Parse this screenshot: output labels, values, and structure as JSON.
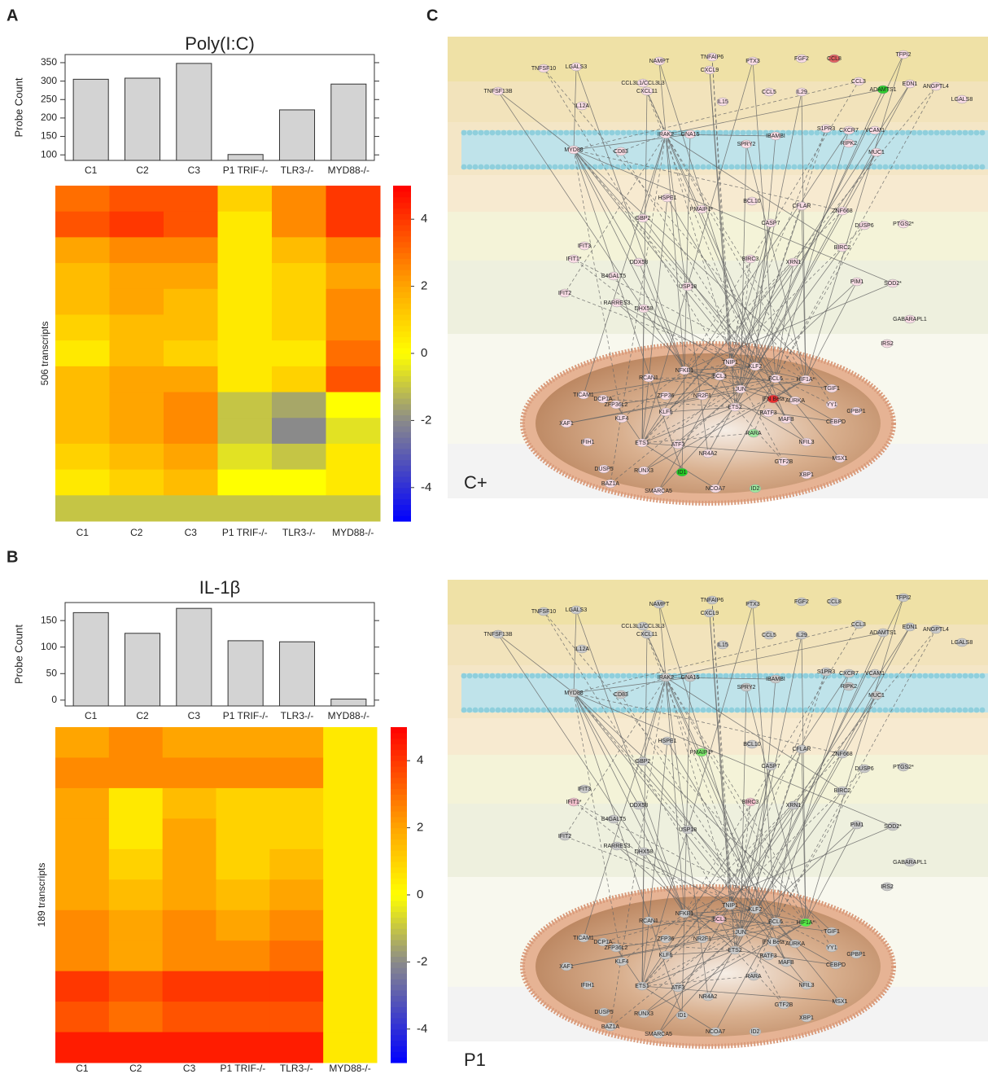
{
  "panel_labels": [
    "A",
    "B",
    "C"
  ],
  "chart_data": [
    {
      "type": "bar",
      "title": "Poly(I:C)",
      "ylabel": "Probe Count",
      "categories": [
        "C1",
        "C2",
        "C3",
        "P1 TRIF-/-",
        "TLR3-/-",
        "MYD88-/-"
      ],
      "values": [
        305,
        308,
        348,
        101,
        222,
        292
      ],
      "color": "#d3d3d3",
      "ylim": [
        85,
        372
      ],
      "yticks": [
        100,
        150,
        200,
        250,
        300,
        350
      ]
    },
    {
      "type": "heatmap",
      "ylabel": "506 transcripts",
      "categories": [
        "C1",
        "C2",
        "C3",
        "P1 TRIF-/-",
        "TLR3-/-",
        "MYD88-/-"
      ],
      "values": [
        [
          3,
          3.5,
          3.5,
          1,
          2.5,
          4
        ],
        [
          3.5,
          4,
          3.5,
          0.5,
          2.5,
          4
        ],
        [
          2,
          2.5,
          2.5,
          0.5,
          1.5,
          2.5
        ],
        [
          1.5,
          2,
          2,
          0.5,
          1,
          2
        ],
        [
          1.5,
          2,
          1.5,
          0.5,
          1,
          2.5
        ],
        [
          1,
          1.5,
          1.5,
          0.5,
          1,
          2.5
        ],
        [
          0.5,
          1.5,
          1,
          0.5,
          0.5,
          3
        ],
        [
          1.5,
          2,
          2,
          0.5,
          1,
          3.5
        ],
        [
          1.5,
          2,
          2.5,
          -1,
          -1.5,
          0
        ],
        [
          1.5,
          2,
          2.5,
          -1,
          -2,
          -0.5
        ],
        [
          1,
          1.5,
          2,
          -0.5,
          -1,
          0.5
        ],
        [
          0.5,
          1,
          1.5,
          0,
          0,
          0.5
        ],
        [
          -1,
          -1,
          -1,
          -1,
          -1,
          -1
        ]
      ],
      "colorbar_lim": [
        -5,
        5
      ],
      "colorbar_ticks": [
        4,
        2,
        0,
        -2,
        -4
      ],
      "colorscale": [
        {
          "value": -5,
          "color": "#0000ff"
        },
        {
          "value": -2,
          "color": "#8a8a8a"
        },
        {
          "value": 0,
          "color": "#ffff00"
        },
        {
          "value": 2,
          "color": "#ffa500"
        },
        {
          "value": 5,
          "color": "#ff0000"
        }
      ]
    },
    {
      "type": "bar",
      "title": "IL-1β",
      "ylabel": "Probe Count",
      "categories": [
        "C1",
        "C2",
        "C3",
        "P1 TRIF-/-",
        "TLR3-/-",
        "MYD88-/-"
      ],
      "values": [
        165,
        126,
        173,
        112,
        110,
        2
      ],
      "color": "#d3d3d3",
      "ylim": [
        -11,
        184
      ],
      "yticks": [
        0,
        50,
        100,
        150
      ]
    },
    {
      "type": "heatmap",
      "ylabel": "189 transcripts",
      "categories": [
        "C1",
        "C2",
        "C3",
        "P1 TRIF-/-",
        "TLR3-/-",
        "MYD88-/-"
      ],
      "values": [
        [
          2,
          2.5,
          2,
          2,
          2,
          0.5
        ],
        [
          2.5,
          2.5,
          2.5,
          2.5,
          2.5,
          0.5
        ],
        [
          2,
          0.5,
          1.5,
          1,
          1,
          0.5
        ],
        [
          2,
          0.5,
          2,
          1,
          1,
          0.5
        ],
        [
          2,
          1,
          2,
          1,
          1.5,
          0.5
        ],
        [
          2,
          1.5,
          2,
          1.5,
          2,
          0.5
        ],
        [
          2.5,
          2,
          2.5,
          2,
          2.5,
          0.5
        ],
        [
          2.5,
          2,
          2.5,
          2.5,
          3,
          0.5
        ],
        [
          4,
          3.5,
          4,
          4,
          4,
          0.5
        ],
        [
          3.5,
          3,
          3.5,
          3.5,
          3.5,
          0.5
        ],
        [
          4.5,
          4.5,
          4.5,
          4.5,
          4.5,
          0.5
        ]
      ],
      "colorbar_lim": [
        -5,
        5
      ],
      "colorbar_ticks": [
        4,
        2,
        0,
        -2,
        -4
      ],
      "colorscale": [
        {
          "value": -5,
          "color": "#0000ff"
        },
        {
          "value": -2,
          "color": "#8a8a8a"
        },
        {
          "value": 0,
          "color": "#ffff00"
        },
        {
          "value": 2,
          "color": "#ffa500"
        },
        {
          "value": 5,
          "color": "#ff0000"
        }
      ]
    }
  ],
  "network": {
    "nodes": [
      "TNFSF10",
      "LGALS3",
      "NAMPT",
      "TNFAIP6",
      "PTX3",
      "FGF2",
      "CCL8",
      "TFPI2",
      "TNFSF13B",
      "CCL3L1/CCL3L3",
      "CXCL9",
      "CXCL11",
      "IL15",
      "CCL5",
      "IL29",
      "CCL3",
      "ADAMTS1",
      "EDN1",
      "ANGPTL4",
      "LGALS8",
      "IL12A",
      "IRAK2",
      "GNA15",
      "IBAMBI",
      "S1PR3",
      "CXCR7",
      "VCAM1",
      "RIPK2",
      "SPRY2",
      "MYD88",
      "CD83",
      "MUC1",
      "HSPE1",
      "PMAIP1*",
      "BCL10",
      "CFLAR",
      "ZNF668",
      "GBP2",
      "CASP7",
      "DUSP6",
      "PTGS2*",
      "IFIT3",
      "IFIT1*",
      "DDX58",
      "BIRC2",
      "BIRC3",
      "XRN1",
      "B4GALT5",
      "USP18",
      "PIM1",
      "SOD2*",
      "IFIT2",
      "RARRES3",
      "DHX58",
      "GABARAPL1",
      "IRS2",
      "TNIP1",
      "KLF2",
      "NFKB1",
      "BCL3",
      "JUN",
      "BCL6",
      "HIF1A*",
      "RCAN1",
      "TGIF1",
      "TICAM1",
      "DCP1A",
      "ZFP36L2",
      "ZFP36",
      "NR2F1",
      "IFN Beta",
      "AURKA",
      "YY1",
      "KLF6",
      "ETS2",
      "BATF3",
      "GPBP1",
      "XAF1",
      "KLF4",
      "MAFB",
      "CEBPD",
      "RARA",
      "IFIH1",
      "ETS1",
      "ATF3",
      "NFIL3",
      "NR4A2",
      "GTF2B",
      "MSX1",
      "XBP1",
      "DUSP5",
      "RUNX3",
      "ID1",
      "BAZ1A",
      "SMARCA5",
      "NCOA7",
      "ID2"
    ],
    "panels": [
      {
        "label": "C+",
        "node_color": "#f9dce5",
        "highlights": [
          {
            "node": "ADAMTS1",
            "color": "#30cc30"
          },
          {
            "node": "RARA",
            "color": "#9ee89e"
          },
          {
            "node": "ID1",
            "color": "#22cc22"
          },
          {
            "node": "ID2",
            "color": "#9ee89e"
          },
          {
            "node": "IFN Beta",
            "color": "#e83030"
          },
          {
            "node": "CCL8",
            "color": "#e06060"
          }
        ]
      },
      {
        "label": "P1",
        "node_color": "#c9c9c9",
        "highlights": [
          {
            "node": "PMAIP1*",
            "color": "#7dea6b"
          },
          {
            "node": "HIF1A*",
            "color": "#55ee44"
          },
          {
            "node": "IFIT1*",
            "color": "#f3c0cc"
          },
          {
            "node": "BCL3",
            "color": "#f3c0cc"
          },
          {
            "node": "BIRC3",
            "color": "#f3c0cc"
          }
        ]
      }
    ]
  }
}
